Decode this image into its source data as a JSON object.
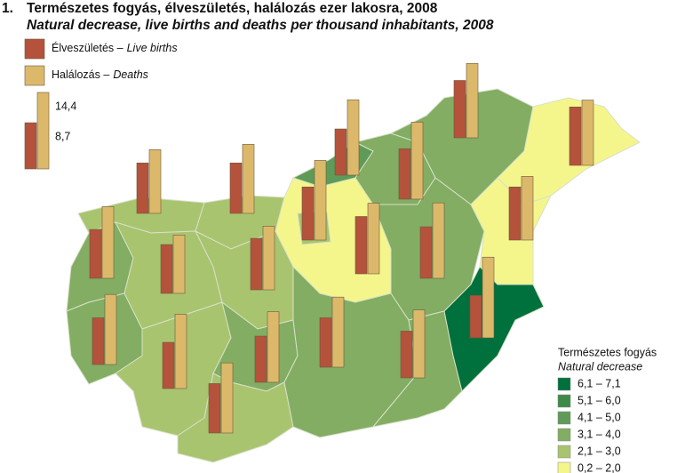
{
  "chart_data": {
    "type": "map-bars",
    "number": "1.",
    "title": "Természetes fogyás, élveszületés, halálozás ezer lakosra, 2008",
    "subtitle": "Natural decrease, live births and deaths per thousand inhabitants, 2008",
    "series": [
      {
        "name": "Élveszületés –",
        "name_en": "Live births",
        "color": "#b5523b",
        "values": [
          9.2,
          9.5,
          9.5,
          8.7,
          10.8,
          11,
          9.5,
          10,
          9.2,
          9.7,
          10.8,
          9.7,
          10,
          8.8,
          8.7,
          8.7,
          9.3,
          9.3,
          8.8,
          8
        ]
      },
      {
        "name": "Halálozás –",
        "name_en": "Deaths",
        "color": "#dcb96a",
        "values": [
          13.5,
          12,
          13,
          14.2,
          14,
          12.3,
          14.5,
          15,
          11,
          12,
          13.3,
          14.2,
          12,
          13.2,
          14,
          13.3,
          13.2,
          13.2,
          12.8,
          15.2
        ]
      }
    ],
    "scale_key": {
      "values": [
        14.4,
        8.7
      ],
      "value_labels": [
        "14,4",
        "8,7"
      ]
    },
    "classes_title": "Természetes fogyás",
    "classes_title_en": "Natural decrease",
    "classes": [
      {
        "label": "6,1 – 7,1",
        "color": "#00703c"
      },
      {
        "label": "5,1 – 6,0",
        "color": "#3d8a48"
      },
      {
        "label": "4,1 – 5,0",
        "color": "#5f9b58"
      },
      {
        "label": "3,1 – 4,0",
        "color": "#82ad63"
      },
      {
        "label": "2,1 – 3,0",
        "color": "#a9c46f"
      },
      {
        "label": "0,2 – 2,0",
        "color": "#f4f68c"
      }
    ],
    "region_classes": [
      4,
      3,
      3,
      4,
      4,
      4,
      4,
      3,
      4,
      5,
      2,
      3,
      3,
      3,
      5,
      3,
      5,
      3,
      0,
      4
    ]
  }
}
